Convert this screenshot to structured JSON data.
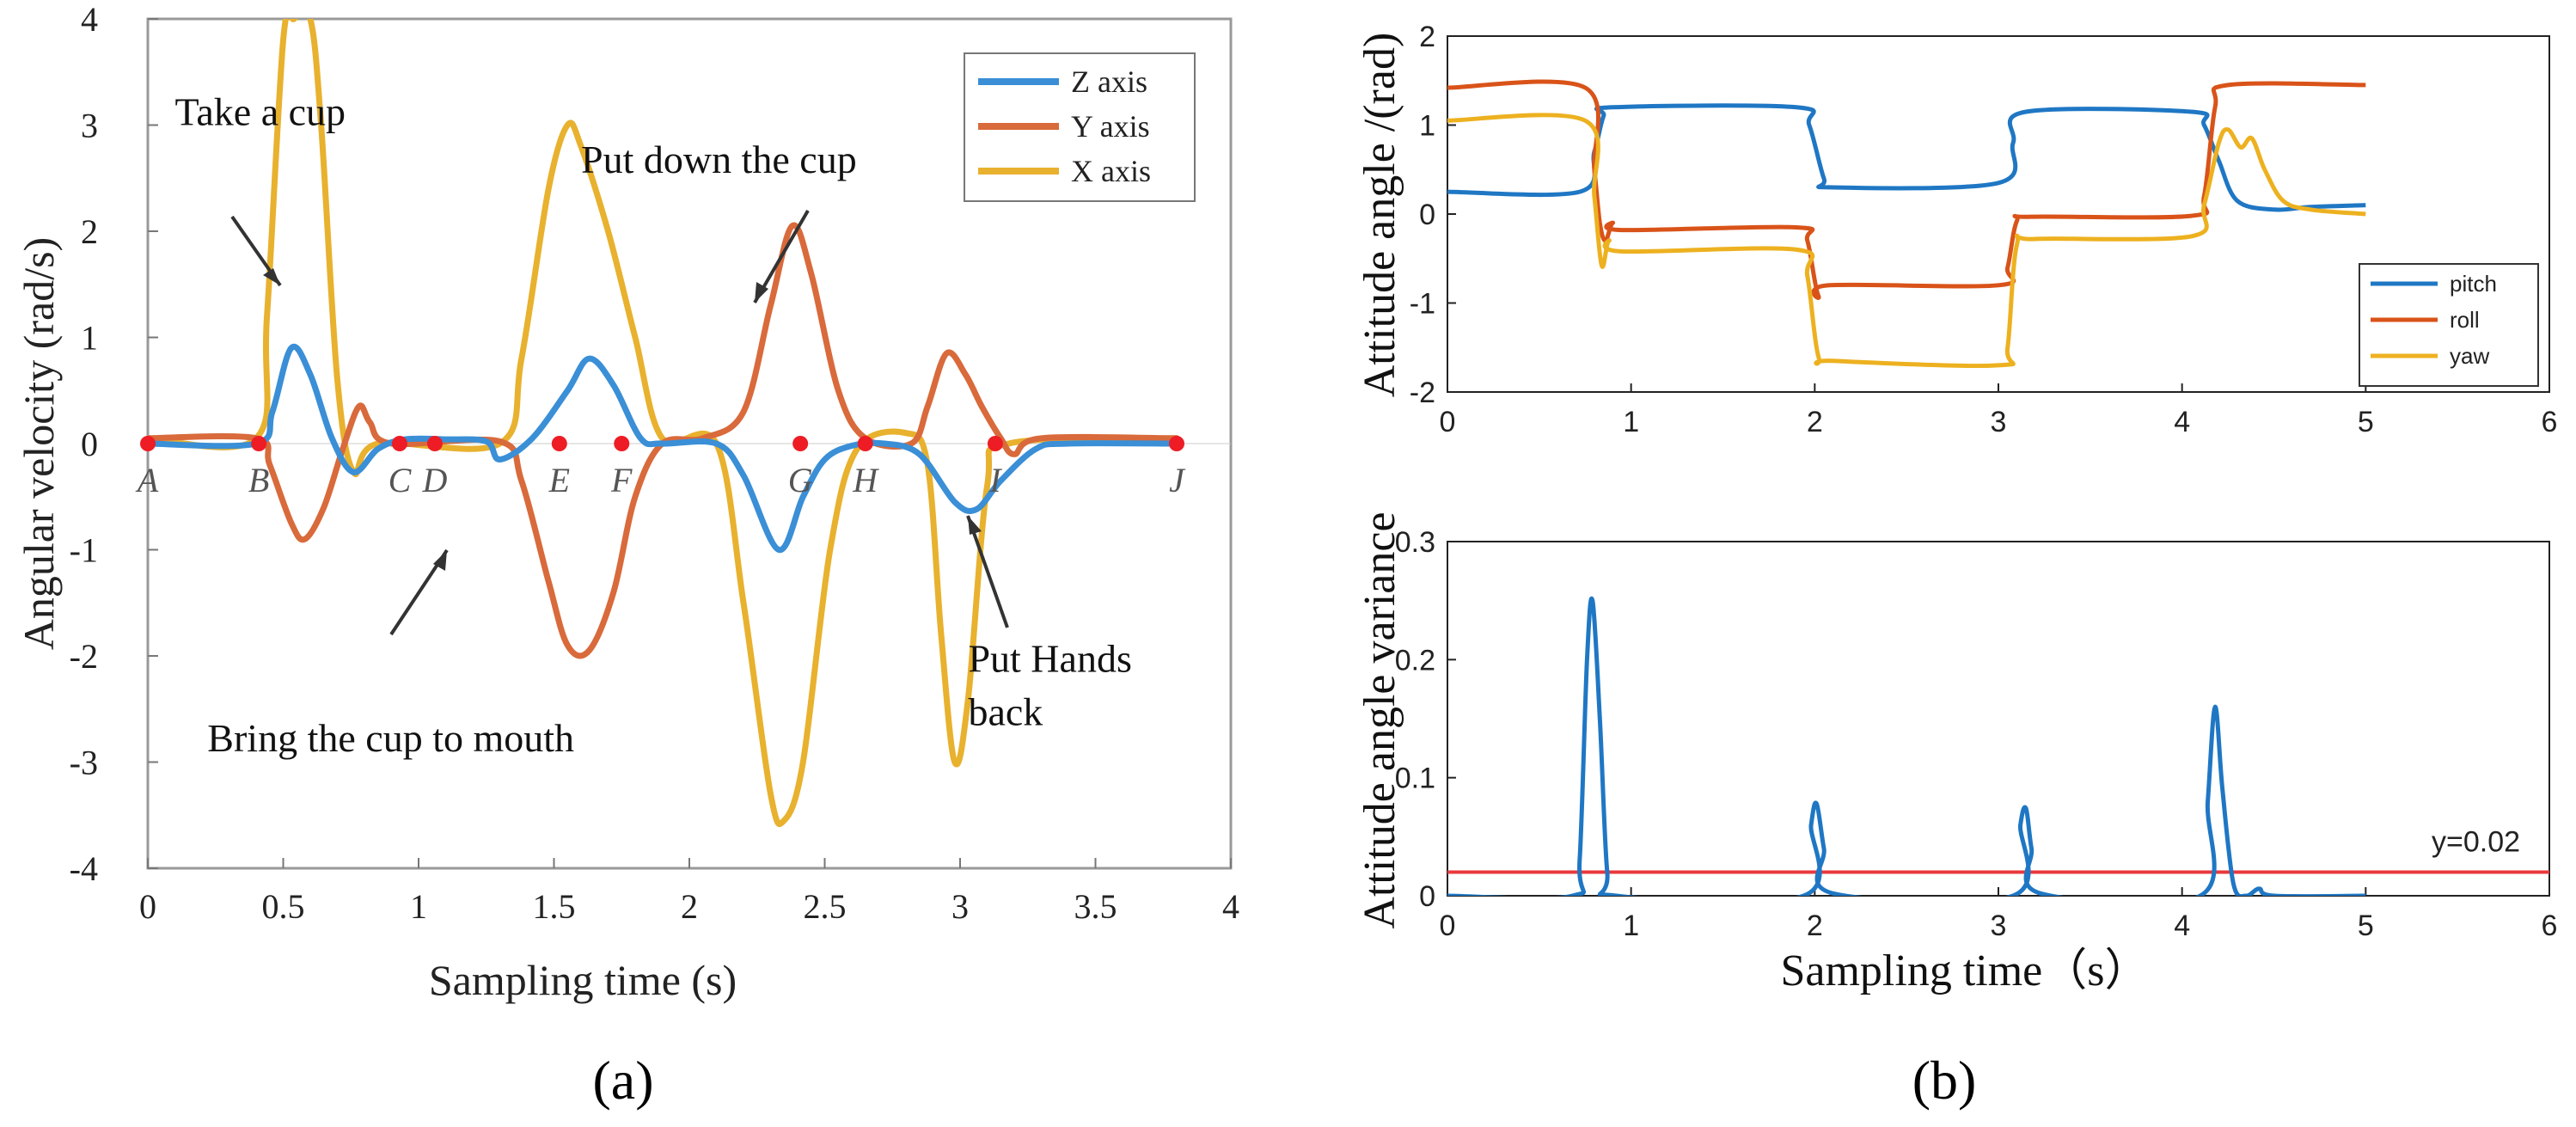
{
  "chart_data": [
    {
      "panel": "a",
      "type": "line",
      "xlabel": "Sampling time (s)",
      "ylabel": "Angular velocity (rad/s)",
      "xlim": [
        0,
        4
      ],
      "ylim": [
        -4,
        4
      ],
      "xticks": [
        "0",
        "0.5",
        "1",
        "1.5",
        "2",
        "2.5",
        "3",
        "3.5",
        "4"
      ],
      "yticks": [
        "4",
        "3",
        "2",
        "1",
        "0",
        "-1",
        "-2",
        "-3",
        "-4"
      ],
      "legend": {
        "position": "top-right"
      },
      "series": [
        {
          "name": "Z axis",
          "color": "#3a8fd6",
          "points": [
            [
              0,
              0
            ],
            [
              0.4,
              0
            ],
            [
              0.46,
              0.3
            ],
            [
              0.53,
              0.9
            ],
            [
              0.6,
              0.65
            ],
            [
              0.68,
              0.05
            ],
            [
              0.76,
              -0.27
            ],
            [
              0.85,
              -0.05
            ],
            [
              0.95,
              0.04
            ],
            [
              1.1,
              0.04
            ],
            [
              1.25,
              0.02
            ],
            [
              1.3,
              -0.15
            ],
            [
              1.42,
              0.05
            ],
            [
              1.55,
              0.5
            ],
            [
              1.63,
              0.8
            ],
            [
              1.72,
              0.55
            ],
            [
              1.82,
              0.05
            ],
            [
              1.9,
              0
            ],
            [
              2.1,
              0
            ],
            [
              2.2,
              -0.3
            ],
            [
              2.33,
              -1.0
            ],
            [
              2.42,
              -0.5
            ],
            [
              2.5,
              -0.15
            ],
            [
              2.6,
              -0.02
            ],
            [
              2.72,
              0
            ],
            [
              2.85,
              -0.1
            ],
            [
              2.98,
              -0.55
            ],
            [
              3.06,
              -0.62
            ],
            [
              3.15,
              -0.35
            ],
            [
              3.28,
              -0.05
            ],
            [
              3.4,
              0
            ],
            [
              3.8,
              0
            ]
          ]
        },
        {
          "name": "Y axis",
          "color": "#d96a3b",
          "points": [
            [
              0,
              0.05
            ],
            [
              0.4,
              0.05
            ],
            [
              0.45,
              -0.2
            ],
            [
              0.53,
              -0.75
            ],
            [
              0.58,
              -0.9
            ],
            [
              0.65,
              -0.6
            ],
            [
              0.72,
              -0.05
            ],
            [
              0.78,
              0.35
            ],
            [
              0.82,
              0.2
            ],
            [
              0.9,
              0
            ],
            [
              1.3,
              0.02
            ],
            [
              1.38,
              -0.35
            ],
            [
              1.48,
              -1.3
            ],
            [
              1.55,
              -1.9
            ],
            [
              1.63,
              -1.95
            ],
            [
              1.72,
              -1.4
            ],
            [
              1.8,
              -0.5
            ],
            [
              1.9,
              0
            ],
            [
              2.05,
              0.05
            ],
            [
              2.2,
              0.3
            ],
            [
              2.3,
              1.3
            ],
            [
              2.38,
              2.05
            ],
            [
              2.45,
              1.6
            ],
            [
              2.55,
              0.5
            ],
            [
              2.65,
              0.05
            ],
            [
              2.82,
              0
            ],
            [
              2.88,
              0.35
            ],
            [
              2.95,
              0.85
            ],
            [
              3.02,
              0.65
            ],
            [
              3.08,
              0.35
            ],
            [
              3.15,
              0.05
            ],
            [
              3.2,
              -0.1
            ],
            [
              3.3,
              0.05
            ],
            [
              3.8,
              0.05
            ]
          ]
        },
        {
          "name": "X axis",
          "color": "#e8b12e",
          "points": [
            [
              0,
              0.05
            ],
            [
              0.4,
              0.05
            ],
            [
              0.44,
              1.2
            ],
            [
              0.5,
              3.8
            ],
            [
              0.54,
              4.0
            ],
            [
              0.6,
              4.0
            ],
            [
              0.64,
              3.0
            ],
            [
              0.7,
              0.6
            ],
            [
              0.76,
              -0.27
            ],
            [
              0.85,
              0
            ],
            [
              1.3,
              0
            ],
            [
              1.38,
              0.8
            ],
            [
              1.48,
              2.4
            ],
            [
              1.55,
              3.0
            ],
            [
              1.6,
              2.8
            ],
            [
              1.7,
              2.0
            ],
            [
              1.8,
              1.0
            ],
            [
              1.9,
              0.05
            ],
            [
              2.1,
              0
            ],
            [
              2.2,
              -1.5
            ],
            [
              2.3,
              -3.3
            ],
            [
              2.35,
              -3.55
            ],
            [
              2.42,
              -3.0
            ],
            [
              2.52,
              -1.0
            ],
            [
              2.62,
              -0.05
            ],
            [
              2.8,
              0.1
            ],
            [
              2.88,
              -0.2
            ],
            [
              2.93,
              -1.8
            ],
            [
              2.98,
              -3.0
            ],
            [
              3.03,
              -2.4
            ],
            [
              3.1,
              -0.4
            ],
            [
              3.18,
              0
            ],
            [
              3.8,
              0.05
            ]
          ]
        }
      ],
      "event_points": [
        {
          "label": "A",
          "x": 0.0
        },
        {
          "label": "B",
          "x": 0.41
        },
        {
          "label": "C",
          "x": 0.93
        },
        {
          "label": "D",
          "x": 1.06
        },
        {
          "label": "E",
          "x": 1.52
        },
        {
          "label": "F",
          "x": 1.75
        },
        {
          "label": "G",
          "x": 2.41
        },
        {
          "label": "H",
          "x": 2.65
        },
        {
          "label": "I",
          "x": 3.13
        },
        {
          "label": "J",
          "x": 3.8
        }
      ],
      "annotations": [
        {
          "text": "Take a cup",
          "x": 0.1,
          "y": 3.0
        },
        {
          "text": "Put down the cup",
          "x": 1.6,
          "y": 2.55
        },
        {
          "text": "Bring the cup to mouth",
          "x": 0.22,
          "y": -2.9
        },
        {
          "text": "Put Hands",
          "x": 3.03,
          "y": -2.15
        },
        {
          "text": "back",
          "x": 3.03,
          "y": -2.65
        }
      ]
    },
    {
      "panel": "b-top",
      "type": "line",
      "xlabel": "",
      "ylabel": "Attitude angle /(rad)",
      "xlim": [
        0,
        6
      ],
      "ylim": [
        -2,
        2
      ],
      "xticks": [
        "0",
        "1",
        "2",
        "3",
        "4",
        "5",
        "6"
      ],
      "yticks": [
        "2",
        "1",
        "0",
        "-1",
        "-2"
      ],
      "legend": {
        "position": "bottom-right"
      },
      "series": [
        {
          "name": "pitch",
          "color": "#1f77c4",
          "points": [
            [
              0,
              0.25
            ],
            [
              0.72,
              0.25
            ],
            [
              0.8,
              0.7
            ],
            [
              0.85,
              1.1
            ],
            [
              0.9,
              1.2
            ],
            [
              1.9,
              1.2
            ],
            [
              1.97,
              1.0
            ],
            [
              2.05,
              0.4
            ],
            [
              2.1,
              0.3
            ],
            [
              3.0,
              0.35
            ],
            [
              3.08,
              0.8
            ],
            [
              3.15,
              1.15
            ],
            [
              4.05,
              1.15
            ],
            [
              4.12,
              1.0
            ],
            [
              4.2,
              0.6
            ],
            [
              4.3,
              0.15
            ],
            [
              4.5,
              0.05
            ],
            [
              4.7,
              0.08
            ],
            [
              5.0,
              0.1
            ]
          ]
        },
        {
          "name": "roll",
          "color": "#d95319",
          "points": [
            [
              0,
              1.42
            ],
            [
              0.75,
              1.42
            ],
            [
              0.8,
              0.5
            ],
            [
              0.83,
              -0.1
            ],
            [
              0.86,
              -0.3
            ],
            [
              0.9,
              -0.1
            ],
            [
              0.95,
              -0.18
            ],
            [
              1.9,
              -0.15
            ],
            [
              1.96,
              -0.3
            ],
            [
              2.02,
              -0.92
            ],
            [
              2.08,
              -0.8
            ],
            [
              3.0,
              -0.8
            ],
            [
              3.05,
              -0.6
            ],
            [
              3.1,
              -0.08
            ],
            [
              3.18,
              -0.03
            ],
            [
              4.05,
              -0.02
            ],
            [
              4.12,
              0.2
            ],
            [
              4.18,
              1.2
            ],
            [
              4.25,
              1.45
            ],
            [
              5.0,
              1.45
            ]
          ]
        },
        {
          "name": "yaw",
          "color": "#edb120",
          "points": [
            [
              0,
              1.05
            ],
            [
              0.75,
              1.05
            ],
            [
              0.8,
              0.2
            ],
            [
              0.84,
              -0.58
            ],
            [
              0.88,
              -0.3
            ],
            [
              0.95,
              -0.42
            ],
            [
              1.9,
              -0.4
            ],
            [
              1.96,
              -0.7
            ],
            [
              2.02,
              -1.6
            ],
            [
              2.1,
              -1.65
            ],
            [
              3.0,
              -1.7
            ],
            [
              3.05,
              -1.5
            ],
            [
              3.1,
              -0.35
            ],
            [
              3.2,
              -0.28
            ],
            [
              4.05,
              -0.25
            ],
            [
              4.12,
              0.1
            ],
            [
              4.2,
              0.8
            ],
            [
              4.25,
              0.95
            ],
            [
              4.32,
              0.75
            ],
            [
              4.38,
              0.85
            ],
            [
              4.45,
              0.5
            ],
            [
              4.55,
              0.15
            ],
            [
              4.7,
              0.05
            ],
            [
              5.0,
              0.0
            ]
          ]
        }
      ]
    },
    {
      "panel": "b-bottom",
      "type": "line",
      "xlabel": "Sampling time（s）",
      "ylabel": "Attitude angle variance",
      "xlim": [
        0,
        6
      ],
      "ylim": [
        0,
        0.3
      ],
      "xticks": [
        "0",
        "1",
        "2",
        "3",
        "4",
        "5",
        "6"
      ],
      "yticks": [
        "0.3",
        "0.2",
        "0.1",
        "0"
      ],
      "threshold": {
        "value": 0.02,
        "label": "y=0.02",
        "color": "#e8383d"
      },
      "series": [
        {
          "name": "variance",
          "color": "#1f77c4",
          "points": [
            [
              0,
              0
            ],
            [
              0.68,
              0
            ],
            [
              0.72,
              0.03
            ],
            [
              0.76,
              0.2
            ],
            [
              0.79,
              0.25
            ],
            [
              0.83,
              0.15
            ],
            [
              0.87,
              0.02
            ],
            [
              0.92,
              0
            ],
            [
              1.94,
              0
            ],
            [
              1.98,
              0.06
            ],
            [
              2.01,
              0.078
            ],
            [
              2.05,
              0.04
            ],
            [
              2.1,
              0.002
            ],
            [
              3.08,
              0
            ],
            [
              3.12,
              0.06
            ],
            [
              3.15,
              0.074
            ],
            [
              3.18,
              0.04
            ],
            [
              3.23,
              0.002
            ],
            [
              4.1,
              0
            ],
            [
              4.14,
              0.08
            ],
            [
              4.18,
              0.16
            ],
            [
              4.22,
              0.09
            ],
            [
              4.28,
              0.01
            ],
            [
              4.35,
              0
            ],
            [
              4.42,
              0.006
            ],
            [
              4.5,
              0
            ],
            [
              5.0,
              0
            ]
          ]
        }
      ]
    }
  ],
  "captions": {
    "a": "(a)",
    "b": "(b)"
  }
}
